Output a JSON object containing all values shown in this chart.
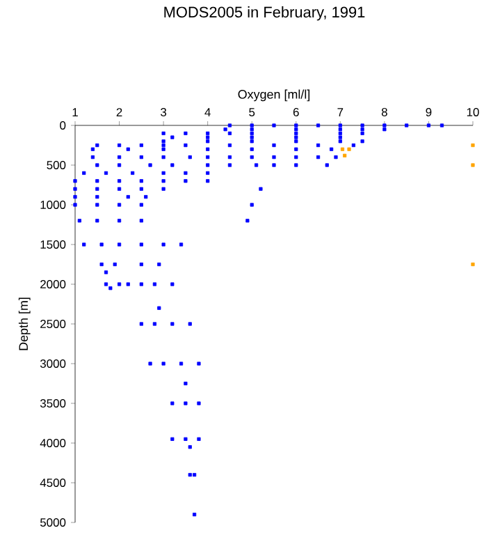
{
  "chart_data": {
    "type": "scatter",
    "title": "MODS2005 in February, 1991",
    "xlabel": "Oxygen [ml/l]",
    "ylabel": "Depth [m]",
    "xlim": [
      1,
      10
    ],
    "ylim": [
      5000,
      0
    ],
    "xticks": [
      1,
      2,
      3,
      4,
      5,
      6,
      7,
      8,
      9,
      10
    ],
    "yticks": [
      0,
      500,
      1000,
      1500,
      2000,
      2500,
      3000,
      3500,
      4000,
      4500,
      5000
    ],
    "marker": "square",
    "series": [
      {
        "color": "#0000ff",
        "x": [
          4.5,
          5,
          5.5,
          6,
          6.5,
          7,
          7.5,
          8,
          8.5,
          9,
          9.3,
          4.4,
          5,
          6,
          7,
          7.5,
          8,
          3,
          3.5,
          4,
          4.5,
          5,
          6,
          7,
          7.5,
          3.2,
          4,
          5,
          6,
          7,
          3,
          4,
          5,
          6,
          7,
          7.5,
          1.5,
          2,
          2.5,
          3,
          3.5,
          4.5,
          5.5,
          6.5,
          7.3,
          1.4,
          2.2,
          3,
          4,
          5,
          6,
          6.8,
          1.4,
          2,
          2.5,
          3,
          3.6,
          4,
          4.5,
          5,
          5.5,
          6,
          6.5,
          6.9,
          1.5,
          2,
          2.7,
          3.2,
          4,
          4.5,
          5.1,
          5.5,
          6,
          6.7,
          1.2,
          1.7,
          2.3,
          3,
          3.5,
          4,
          1,
          1.5,
          2,
          2.5,
          3,
          3.5,
          4,
          1,
          1.5,
          2,
          2.5,
          3,
          5.2,
          1,
          1.5,
          2.2,
          2.6,
          1,
          1.5,
          2,
          2.5,
          5,
          1.1,
          1.5,
          2,
          2.5,
          4.9,
          1.2,
          1.6,
          2,
          2.5,
          3,
          3.4,
          1.6,
          1.9,
          2.5,
          2.9,
          1.7,
          1.7,
          2,
          2.2,
          2.5,
          2.8,
          3.2,
          1.8,
          2.9,
          2.5,
          2.8,
          3.2,
          3.6,
          2.7,
          3,
          3.4,
          3.8,
          3.5,
          3.2,
          3.5,
          3.8,
          3.2,
          3.5,
          3.8,
          3.6,
          3.6,
          3.7,
          3.7
        ],
        "values": [
          0,
          0,
          0,
          0,
          0,
          0,
          0,
          0,
          0,
          0,
          0,
          50,
          50,
          50,
          50,
          50,
          50,
          100,
          100,
          100,
          100,
          100,
          100,
          100,
          100,
          150,
          150,
          150,
          150,
          150,
          200,
          200,
          200,
          200,
          200,
          200,
          250,
          250,
          250,
          250,
          250,
          250,
          250,
          250,
          250,
          300,
          300,
          300,
          300,
          300,
          300,
          300,
          400,
          400,
          400,
          400,
          400,
          400,
          400,
          400,
          400,
          400,
          400,
          400,
          500,
          500,
          500,
          500,
          500,
          500,
          500,
          500,
          500,
          500,
          600,
          600,
          600,
          600,
          600,
          600,
          700,
          700,
          700,
          700,
          700,
          700,
          700,
          800,
          800,
          800,
          800,
          800,
          800,
          900,
          900,
          900,
          900,
          1000,
          1000,
          1000,
          1000,
          1000,
          1200,
          1200,
          1200,
          1200,
          1200,
          1500,
          1500,
          1500,
          1500,
          1500,
          1500,
          1750,
          1750,
          1750,
          1750,
          1850,
          2000,
          2000,
          2000,
          2000,
          2000,
          2000,
          2050,
          2300,
          2500,
          2500,
          2500,
          2500,
          3000,
          3000,
          3000,
          3000,
          3250,
          3500,
          3500,
          3500,
          3950,
          3950,
          3950,
          4050,
          4400,
          4400,
          4900
        ]
      },
      {
        "color": "#ffa500",
        "x": [
          7.05,
          7.2,
          7.1,
          10,
          10,
          10
        ],
        "values": [
          300,
          300,
          380,
          250,
          500,
          1750
        ]
      }
    ]
  }
}
